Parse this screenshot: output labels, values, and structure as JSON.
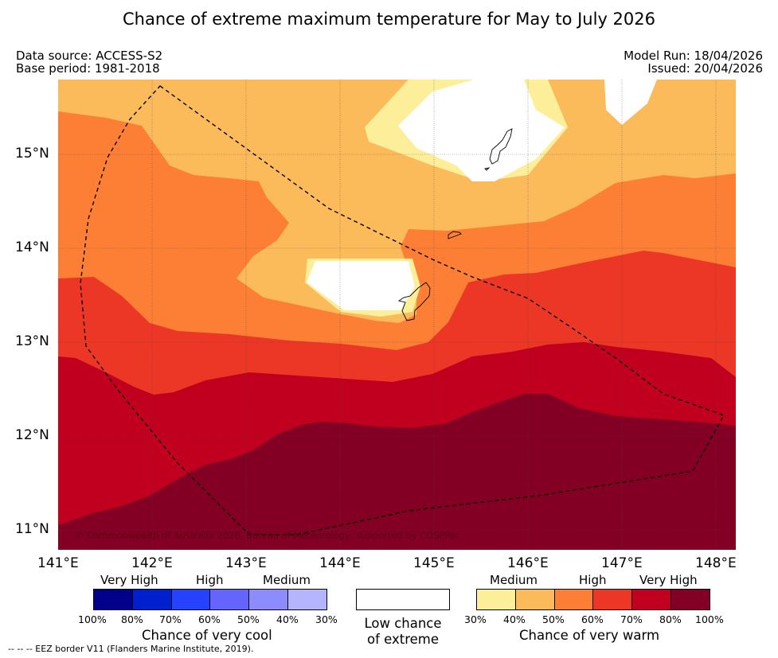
{
  "title": "Chance of extreme maximum temperature for May to July 2026",
  "meta": {
    "data_source": "Data source: ACCESS-S2",
    "base_period": "Base period: 1981-2018",
    "model_run": "Model Run: 18/04/2026",
    "issued": "Issued: 20/04/2026"
  },
  "map": {
    "lon_ticks": [
      "141°E",
      "142°E",
      "143°E",
      "144°E",
      "145°E",
      "146°E",
      "147°E",
      "148°E"
    ],
    "lat_ticks": [
      "15°N",
      "14°N",
      "13°N",
      "12°N",
      "11°N"
    ],
    "copyright": "© Commonwealth of Australia 2026, Bureau of Meteorology, supported by COSPPac",
    "colors": {
      "warm_30_40": "#fdee9a",
      "warm_40_50": "#fcbb5b",
      "warm_50_60": "#fc7f35",
      "warm_60_70": "#ec3626",
      "warm_70_80": "#c0001e",
      "warm_80_100": "#830024",
      "low": "#ffffff"
    }
  },
  "legend": {
    "cool": {
      "levels": [
        "Very High",
        "High",
        "Medium"
      ],
      "pcts": [
        "100%",
        "80%",
        "70%",
        "60%",
        "50%",
        "40%",
        "30%"
      ],
      "title": "Chance of very cool",
      "colors": [
        "#00008b",
        "#0020d0",
        "#2442ff",
        "#6464ff",
        "#8c8cff",
        "#b4b4ff"
      ]
    },
    "low": {
      "line1": "Low chance",
      "line2": "of extreme"
    },
    "warm": {
      "levels": [
        "Medium",
        "High",
        "Very High"
      ],
      "pcts": [
        "30%",
        "40%",
        "50%",
        "60%",
        "70%",
        "80%",
        "100%"
      ],
      "title": "Chance of very warm",
      "colors": [
        "#fdee9a",
        "#fcbb5b",
        "#fc7f35",
        "#ec3626",
        "#c0001e",
        "#830024"
      ]
    }
  },
  "footnote": "--  --  -- EEZ border V11 (Flanders Marine Institute, 2019)."
}
